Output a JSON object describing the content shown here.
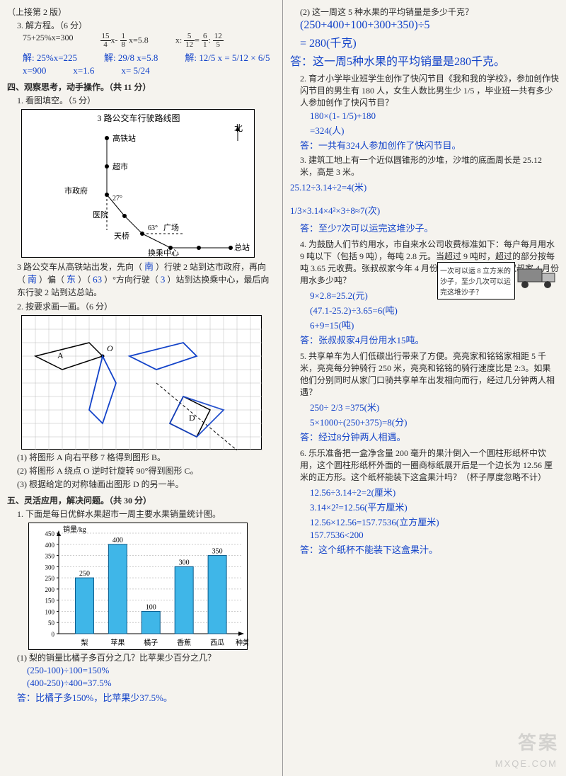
{
  "left": {
    "header": "（上接第 2 版）",
    "q3": {
      "title": "3. 解方程。（6 分）",
      "eq1": "75+25%x=300",
      "eq2a": "15",
      "eq2b": "4",
      "eq2c": "1",
      "eq2d": "8",
      "eq2_rhs": "x=5.8",
      "eq3": "x: 5/12 = 6 : 12/5",
      "h1a": "解: 25%x=225",
      "h1b": "x=900",
      "h2a": "解: 29/8 x=5.8",
      "h2b": "x=1.6",
      "h3a": "解: 12/5 x = 5/12 × 6/5",
      "h3b": "x= 5/24"
    },
    "sec4": "四、观察思考，动手操作。（共 11 分）",
    "q4_1": "1. 看图填空。（5 分）",
    "map": {
      "title": "3 路公交车行驶路线图",
      "north": "北",
      "stops": {
        "gaotie": "高铁站",
        "chaoshi": "超市",
        "shizf": "市政府",
        "yiyuan": "医院",
        "tianqiao": "天桥",
        "guangchang": "广场",
        "huancheng": "换乘中心",
        "zongzhan": "总站"
      },
      "ang1": "27°",
      "ang2": "63°"
    },
    "fill_text_a": "3 路公交车从高铁站出发，先向（",
    "fill_text_b": "）行驶 2 站到达市政府，再向",
    "fill_text_c": "（",
    "fill_text_d": "）偏（",
    "fill_text_e": "）（",
    "fill_text_f": "）°方向行驶（",
    "fill_text_g": "）站到达换乘中心，最后向东行驶 2 站到达总站。",
    "fb1": "南",
    "fb2": "南",
    "fb3": "东",
    "fb4": "63",
    "fb5": "3",
    "q4_2": "2. 按要求画一画。（6 分）",
    "shapes": {
      "A": "A",
      "O": "O",
      "D": "D"
    },
    "sub1": "(1) 将图形 A 向右平移 7 格得到图形 B。",
    "sub2": "(2) 将图形 A 绕点 O 逆时针旋转 90°得到图形 C。",
    "sub3": "(3) 根据给定的对称轴画出图形 D 的另一半。",
    "sec5": "五、灵活应用，解决问题。（共 30 分）",
    "q5_1": "1. 下面是每日优鲜水果超市一周主要水果销量统计图。",
    "chart": {
      "ylabel": "销量/kg",
      "ymax": 450,
      "yticks": [
        0,
        50,
        100,
        150,
        200,
        250,
        300,
        350,
        400,
        450
      ],
      "xlabel": "种类",
      "cats": [
        "梨",
        "苹果",
        "橘子",
        "香蕉",
        "西瓜"
      ],
      "vals": [
        250,
        400,
        100,
        300,
        350
      ],
      "bar_color": "#3fb6e8",
      "val_labels": [
        "250",
        "400",
        "100",
        "300",
        "350"
      ]
    },
    "q5_1_sub": "(1) 梨的销量比橘子多百分之几？比苹果少百分之几？",
    "h5a": "(250-100)÷100=150%",
    "h5b": "(400-250)÷400=37.5%",
    "h5c": "答：比橘子多150%，比苹果少37.5%。"
  },
  "right": {
    "q_top": "(2) 这一周这 5 种水果的平均销量是多少千克？",
    "h_top1": "(250+400+100+300+350)÷5",
    "h_top2": "= 280(千克)",
    "h_top3": "答：这一周5种水果的平均销量是280千克。",
    "q2": "2. 育才小学毕业班学生创作了快闪节目《我和我的学校》，参加创作快闪节目的男生有 180 人，女生人数比男生少 1/5 ，毕业班一共有多少人参加创作了快闪节目？",
    "h2a": "180×(1- 1/5)+180",
    "h2b": "=324(人)",
    "h2c": "答：一共有324人参加创作了快闪节目。",
    "q3": "3. 建筑工地上有一个近似圆锥形的沙堆，沙堆的底面周长是 25.12 米，高是 3 米。",
    "truck": "一次可以运 8 立方米的沙子，至少几次可以运完这堆沙子？",
    "h3a": "25.12÷3.14÷2=4(米)",
    "h3b": "1/3×3.14×4²×3÷8≈7(次)",
    "h3c": "答：至少7次可以运完这堆沙子。",
    "q4": "4. 为鼓励人们节约用水，市自来水公司收费标准如下：每户每月用水 9 吨以下（包括 9 吨），每吨 2.8 元。当超过 9 吨时，超过的部分按每吨 3.65 元收费。张叔叔家今年 4 月份交水费 47.1 元，张叔叔家 4 月份用水多少吨？",
    "h4a": "9×2.8=25.2(元)",
    "h4b": "(47.1-25.2)÷3.65=6(吨)",
    "h4c": "6+9=15(吨)",
    "h4d": "答：张叔叔家4月份用水15吨。",
    "q5": "5. 共享单车为人们低碳出行带来了方便。亮亮家和铭铭家相距 5 千米，亮亮每分钟骑行 250 米，亮亮和铭铭的骑行速度比是 2:3。如果他们分别同时从家门口骑共享单车出发相向而行，经过几分钟两人相遇？",
    "h5a": "250÷ 2/3 =375(米)",
    "h5b": "5×1000÷(250+375)=8(分)",
    "h5c": "答：经过8分钟两人相遇。",
    "q6": "6. 乐乐准备把一盒净含量 200 毫升的果汁倒入一个圆柱形纸杯中饮用，这个圆柱形纸杯外面的一圈商标纸展开后是一个边长为 12.56 厘米的正方形。这个纸杯能装下这盒果汁吗？（杯子厚度忽略不计）",
    "h6a": "12.56÷3.14÷2=2(厘米)",
    "h6b": "3.14×2²=12.56(平方厘米)",
    "h6c": "12.56×12.56=157.7536(立方厘米)",
    "h6d": "157.7536<200",
    "h6e": "答：这个纸杯不能装下这盒果汁。"
  },
  "wm1": "答案",
  "wm2": "MXQE.COM"
}
